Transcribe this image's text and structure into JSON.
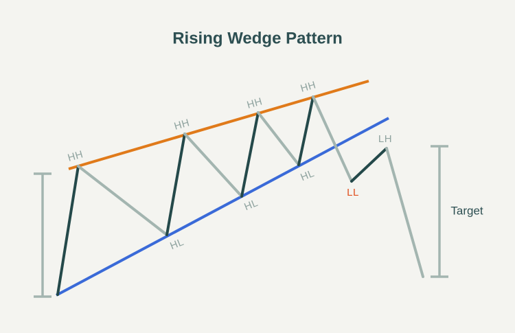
{
  "title": "Rising Wedge Pattern",
  "labels": [
    "HH",
    "HH",
    "HH",
    "HH",
    "HL",
    "HL",
    "HL",
    "LL",
    "LH"
  ],
  "target_label": "Target"
}
